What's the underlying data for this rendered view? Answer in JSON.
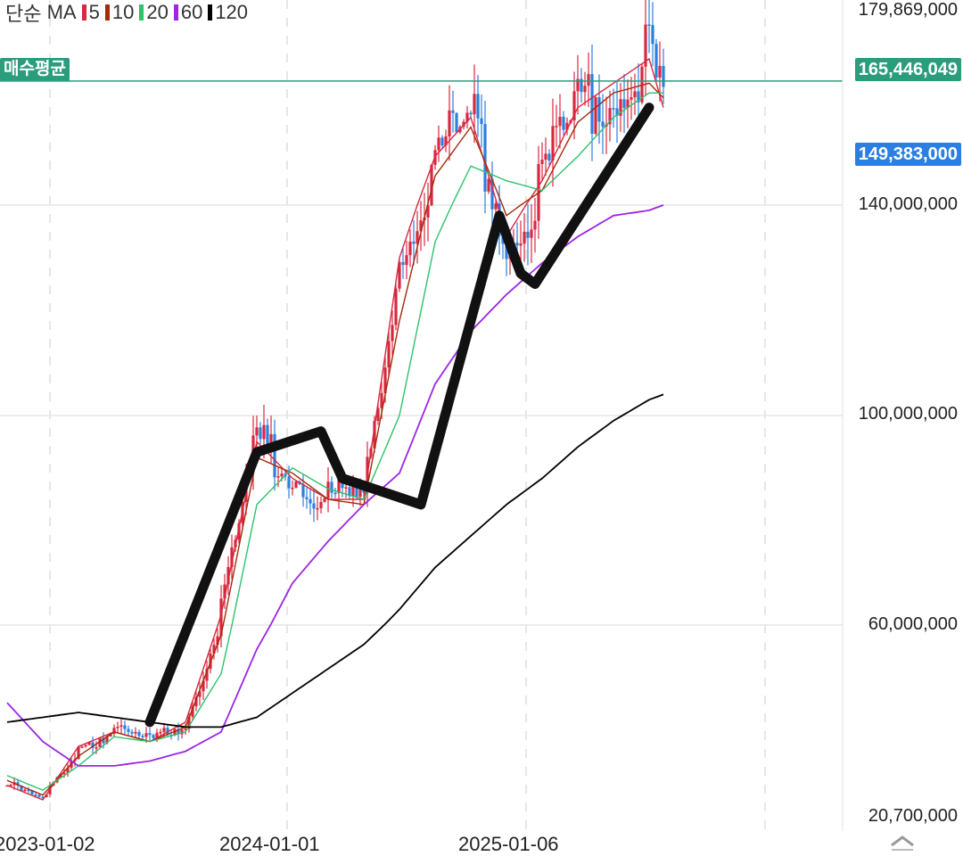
{
  "legend": {
    "type": "단순",
    "ma_label": "MA",
    "items": [
      {
        "period": "5",
        "color": "#d8283f"
      },
      {
        "period": "10",
        "color": "#a52a0a"
      },
      {
        "period": "20",
        "color": "#2fc16b"
      },
      {
        "period": "60",
        "color": "#9b26e6"
      },
      {
        "period": "120",
        "color": "#000000"
      }
    ]
  },
  "avg_price": {
    "label": "매수평균",
    "value": "165,446,049",
    "color": "#2a9d7c"
  },
  "current_price": {
    "value": "149,383,000",
    "color": "#2b7fe0"
  },
  "chart_data": {
    "type": "line",
    "y_ticks": [
      "179,869,000",
      "140,000,000",
      "100,000,000",
      "60,000,000",
      "20,700,000"
    ],
    "x_ticks": [
      "2023-01-02",
      "2024-01-01",
      "2025-01-06"
    ],
    "ylim": [
      20700000,
      179869000
    ],
    "series": [
      {
        "name": "5",
        "color": "#d8283f",
        "points": [
          [
            0,
            27
          ],
          [
            5,
            24
          ],
          [
            10,
            35
          ],
          [
            15,
            38
          ],
          [
            20,
            36
          ],
          [
            25,
            40
          ],
          [
            30,
            62
          ],
          [
            35,
            95
          ],
          [
            40,
            88
          ],
          [
            45,
            84
          ],
          [
            50,
            84
          ],
          [
            55,
            130
          ],
          [
            60,
            150
          ],
          [
            65,
            158
          ],
          [
            70,
            134
          ],
          [
            75,
            145
          ],
          [
            80,
            160
          ],
          [
            85,
            165
          ],
          [
            90,
            170
          ],
          [
            92,
            160
          ]
        ]
      },
      {
        "name": "10",
        "color": "#a52a0a",
        "points": [
          [
            0,
            28
          ],
          [
            5,
            25
          ],
          [
            10,
            33
          ],
          [
            15,
            38
          ],
          [
            20,
            36
          ],
          [
            25,
            39
          ],
          [
            30,
            58
          ],
          [
            35,
            92
          ],
          [
            40,
            89
          ],
          [
            45,
            84
          ],
          [
            50,
            83
          ],
          [
            55,
            118
          ],
          [
            60,
            146
          ],
          [
            65,
            156
          ],
          [
            70,
            138
          ],
          [
            75,
            143
          ],
          [
            80,
            157
          ],
          [
            85,
            163
          ],
          [
            90,
            165
          ],
          [
            92,
            162
          ]
        ]
      },
      {
        "name": "20",
        "color": "#2fc16b",
        "points": [
          [
            0,
            29
          ],
          [
            5,
            26
          ],
          [
            10,
            31
          ],
          [
            15,
            37
          ],
          [
            20,
            36
          ],
          [
            25,
            38
          ],
          [
            30,
            50
          ],
          [
            35,
            83
          ],
          [
            40,
            90
          ],
          [
            45,
            86
          ],
          [
            50,
            84
          ],
          [
            55,
            100
          ],
          [
            60,
            133
          ],
          [
            65,
            148
          ],
          [
            70,
            145
          ],
          [
            75,
            143
          ],
          [
            80,
            150
          ],
          [
            85,
            158
          ],
          [
            90,
            163
          ],
          [
            92,
            163
          ]
        ]
      },
      {
        "name": "60",
        "color": "#9b26e6",
        "points": [
          [
            0,
            44
          ],
          [
            5,
            36
          ],
          [
            10,
            31
          ],
          [
            15,
            31
          ],
          [
            20,
            32
          ],
          [
            25,
            34
          ],
          [
            30,
            38
          ],
          [
            35,
            55
          ],
          [
            40,
            68
          ],
          [
            45,
            76
          ],
          [
            50,
            83
          ],
          [
            55,
            89
          ],
          [
            60,
            106
          ],
          [
            65,
            116
          ],
          [
            70,
            123
          ],
          [
            75,
            129
          ],
          [
            80,
            134
          ],
          [
            85,
            138
          ],
          [
            90,
            139
          ],
          [
            92,
            140
          ]
        ]
      },
      {
        "name": "120",
        "color": "#000000",
        "points": [
          [
            0,
            40
          ],
          [
            5,
            41
          ],
          [
            10,
            42
          ],
          [
            15,
            41
          ],
          [
            20,
            40
          ],
          [
            25,
            39
          ],
          [
            30,
            39
          ],
          [
            35,
            41
          ],
          [
            40,
            46
          ],
          [
            45,
            51
          ],
          [
            50,
            56
          ],
          [
            55,
            63
          ],
          [
            60,
            71
          ],
          [
            65,
            77
          ],
          [
            70,
            83
          ],
          [
            75,
            88
          ],
          [
            80,
            94
          ],
          [
            85,
            99
          ],
          [
            90,
            103
          ],
          [
            92,
            104
          ]
        ]
      }
    ],
    "avg_line": 165446049,
    "annotation_stroke": {
      "color": "#111111",
      "points": [
        [
          20,
          40
        ],
        [
          35,
          93
        ],
        [
          44,
          97
        ],
        [
          47,
          88
        ],
        [
          58,
          83
        ],
        [
          69,
          138
        ],
        [
          72,
          127
        ],
        [
          74,
          125
        ],
        [
          90,
          160
        ]
      ]
    }
  }
}
